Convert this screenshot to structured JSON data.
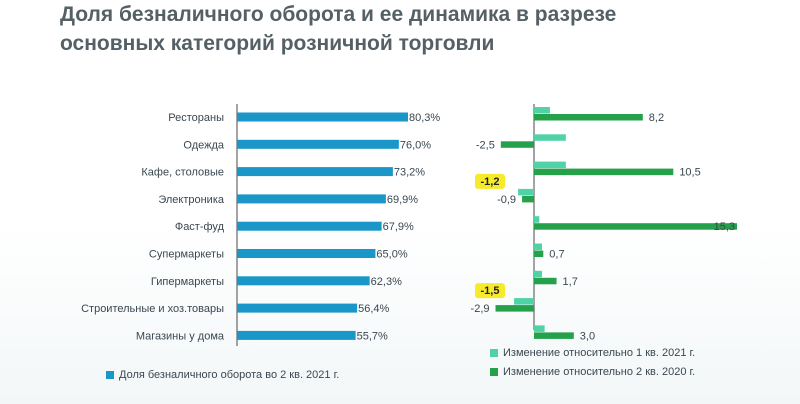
{
  "title_line1": "Доля безналичного оборота и ее динамика в разрезе",
  "title_line2": "основных категорий розничной торговли",
  "colors": {
    "share": "#1a96c8",
    "change_q1_2021": "#4fd3a6",
    "change_q2_2020": "#24a14a",
    "highlight": "#f7ea2a",
    "axis": "#4a4a4a"
  },
  "legend": {
    "share": "Доля безналичного оборота во 2 кв. 2021 г.",
    "change_q1_2021": "Изменение относительно 1 кв. 2021 г.",
    "change_q2_2020": "Изменение относительно 2 кв. 2020 г."
  },
  "chart_data": [
    {
      "type": "bar",
      "orientation": "horizontal",
      "categories": [
        "Рестораны",
        "Одежда",
        "Кафе, столовые",
        "Электроника",
        "Фаст-фуд",
        "Супермаркеты",
        "Гипермаркеты",
        "Строительные и хоз.товары",
        "Магазины у дома"
      ],
      "series": [
        {
          "name": "Доля безналичного оборота во 2 кв. 2021 г.",
          "values": [
            80.3,
            76.0,
            73.2,
            69.9,
            67.9,
            65.0,
            62.3,
            56.4,
            55.7
          ],
          "labels": [
            "80,3%",
            "76,0%",
            "73,2%",
            "69,9%",
            "67,9%",
            "65,0%",
            "62,3%",
            "56,4%",
            "55,7%"
          ]
        }
      ],
      "xlim": [
        0,
        80.3
      ]
    },
    {
      "type": "bar",
      "orientation": "horizontal",
      "categories": [
        "Рестораны",
        "Одежда",
        "Кафе, столовые",
        "Электроника",
        "Фаст-фуд",
        "Супермаркеты",
        "Гипермаркеты",
        "Строительные и хоз.товары",
        "Магазины у дома"
      ],
      "series": [
        {
          "name": "Изменение относительно 1 кв. 2021 г.",
          "values": [
            1.2,
            2.4,
            2.4,
            -1.2,
            0.4,
            0.6,
            0.6,
            -1.5,
            0.8
          ],
          "labels": [
            "",
            "",
            "",
            "-1,2",
            "",
            "",
            "",
            "-1,5",
            ""
          ]
        },
        {
          "name": "Изменение относительно 2 кв. 2020 г.",
          "values": [
            8.2,
            -2.5,
            10.5,
            -0.9,
            15.3,
            0.7,
            1.7,
            -2.9,
            3.0
          ],
          "labels": [
            "8,2",
            "-2,5",
            "10,5",
            "-0,9",
            "15,3",
            "0,7",
            "1,7",
            "-2,9",
            "3,0"
          ]
        }
      ],
      "xlim": [
        -3,
        16
      ]
    }
  ]
}
